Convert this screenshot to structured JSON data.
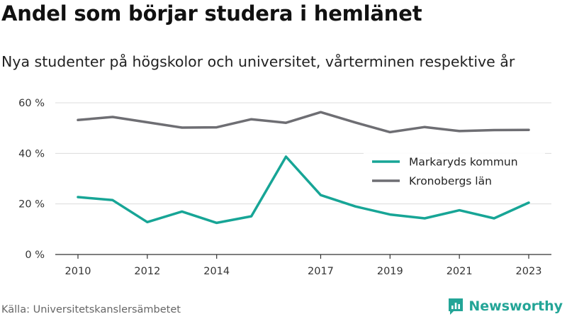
{
  "title": "Andel som börjar studera i hemlänet",
  "subtitle": "Nya studenter på högskolor och universitet, vårterminen respektive år",
  "source": "Källa: Universitetskanslersämbetet",
  "brand": {
    "name": "Newsworthy",
    "icon": "newsworthy-chart-bubble-icon",
    "color": "#23a597"
  },
  "chart_data": {
    "type": "line",
    "x": [
      2010,
      2011,
      2012,
      2013,
      2014,
      2015,
      2016,
      2017,
      2018,
      2019,
      2020,
      2021,
      2022,
      2023
    ],
    "xtick_values": [
      2010,
      2012,
      2014,
      2017,
      2019,
      2021,
      2023
    ],
    "xtick_labels": [
      "2010",
      "2012",
      "2014",
      "2017",
      "2019",
      "2021",
      "2023"
    ],
    "ylim": [
      0,
      60
    ],
    "ytick_values": [
      0,
      20,
      40,
      60
    ],
    "ytick_labels": [
      "0 %",
      "20 %",
      "40 %",
      "60 %"
    ],
    "grid": true,
    "legend_position": "right",
    "series": [
      {
        "name": "Markaryds kommun",
        "color": "#17a596",
        "values": [
          22.7,
          21.5,
          12.8,
          17.0,
          12.5,
          15.1,
          38.7,
          23.5,
          19.0,
          15.8,
          14.3,
          17.5,
          14.3,
          20.5
        ]
      },
      {
        "name": "Kronobergs län",
        "color": "#6e6e73",
        "values": [
          53.2,
          54.4,
          52.3,
          50.2,
          50.3,
          53.5,
          52.1,
          56.3,
          52.2,
          48.4,
          50.4,
          48.8,
          49.2,
          49.3
        ]
      }
    ]
  }
}
